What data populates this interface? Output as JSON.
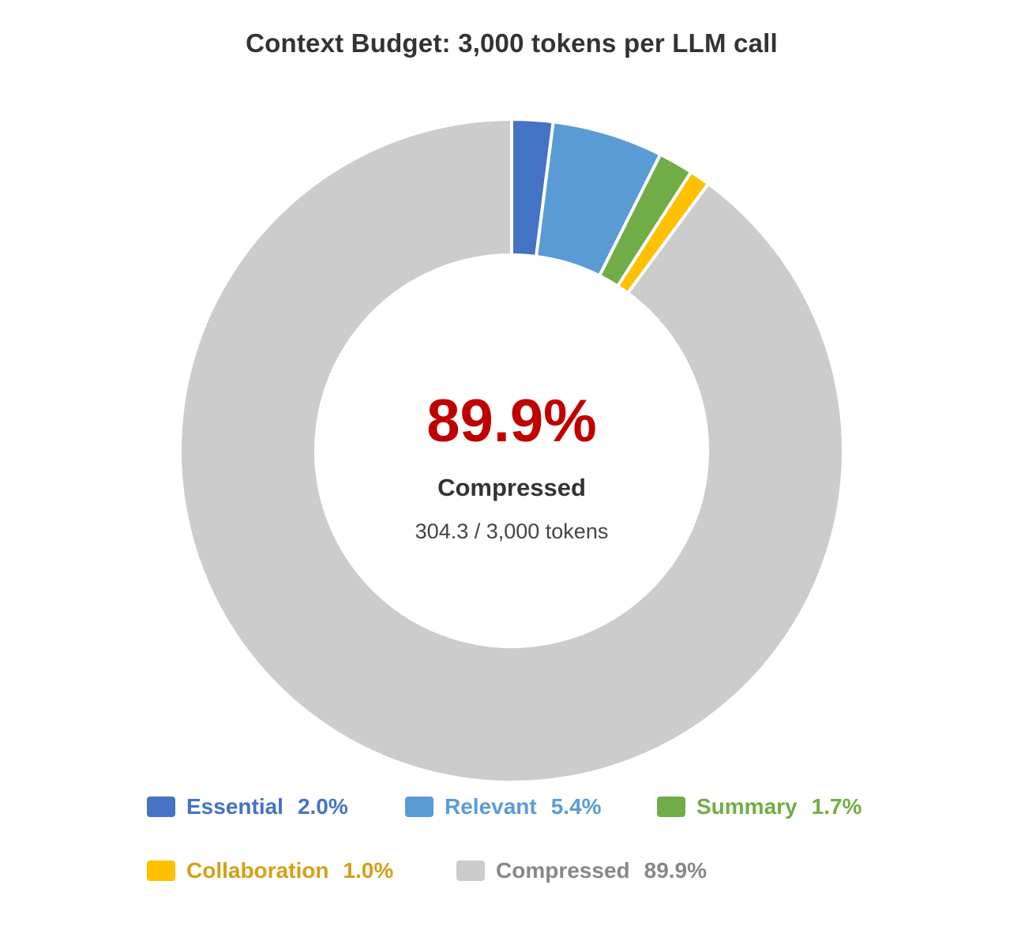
{
  "chart_data": {
    "type": "pie",
    "title": "Context Budget: 3,000 tokens per LLM call",
    "center": {
      "value": "89.9%",
      "caption": "Compressed",
      "sub": "304.3 / 3,000 tokens"
    },
    "slices": [
      {
        "label": "Essential",
        "value": 2.0,
        "pct_label": "2.0%",
        "color": "#4472C4",
        "text_color": "#4472C4"
      },
      {
        "label": "Relevant",
        "value": 5.4,
        "pct_label": "5.4%",
        "color": "#5B9BD5",
        "text_color": "#5B9BD5"
      },
      {
        "label": "Summary",
        "value": 1.7,
        "pct_label": "1.7%",
        "color": "#70AD47",
        "text_color": "#70AD47"
      },
      {
        "label": "Collaboration",
        "value": 1.0,
        "pct_label": "1.0%",
        "color": "#FFC000",
        "text_color": "#D4A017"
      },
      {
        "label": "Compressed",
        "value": 89.9,
        "pct_label": "89.9%",
        "color": "#CCCCCC",
        "text_color": "#888888"
      }
    ],
    "legend": "bottom"
  }
}
